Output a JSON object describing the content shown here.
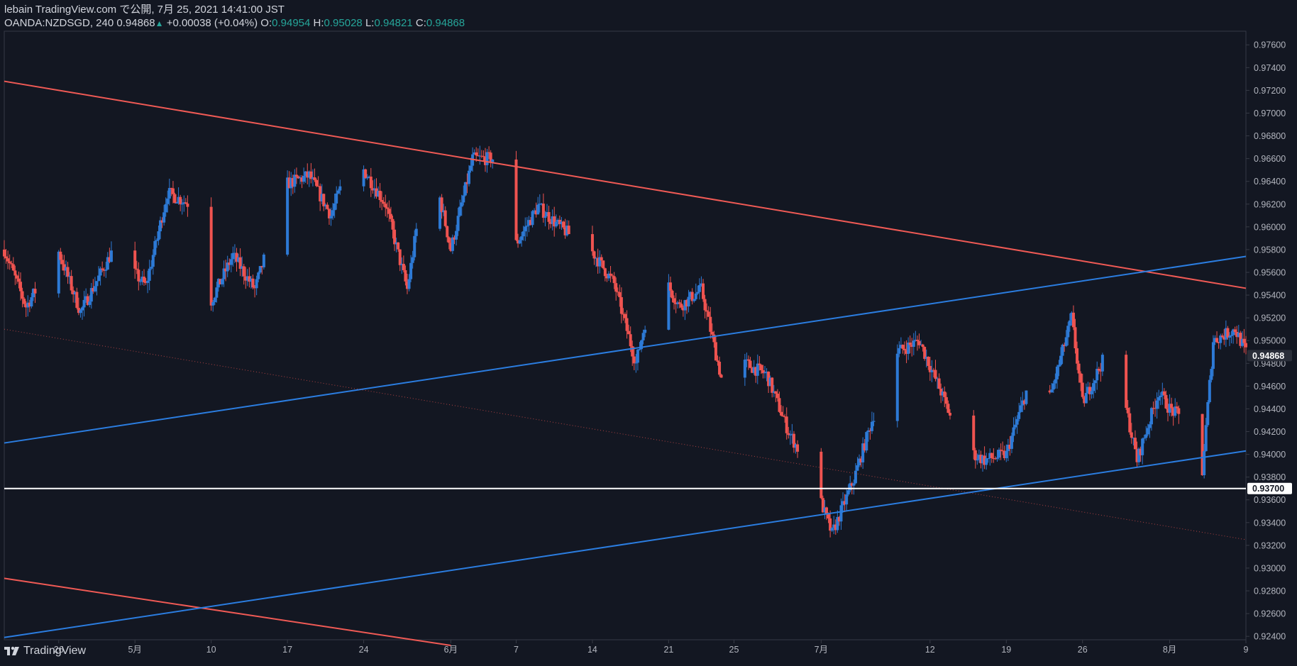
{
  "header": {
    "published": "lebain TradingView.com で公開, 7月 25, 2021 14:41:00 JST",
    "symbol": "OANDA:NZDSGD, 240",
    "last": "0.94868",
    "change": "+0.00038 (+0.04%)",
    "o_label": "O:",
    "o_value": "0.94954",
    "h_label": "H:",
    "h_value": "0.95028",
    "l_label": "L:",
    "l_value": "0.94821",
    "c_label": "C:",
    "c_value": "0.94868"
  },
  "footer": {
    "brand": "TradingView",
    "logo_icon": "tradingview-logo-icon"
  },
  "colors": {
    "background": "#131722",
    "bull": "#2d7ad6",
    "bear": "#ef5350",
    "resistance": "#f05a55",
    "support": "#2b7de0",
    "level": "#ffffff",
    "axis_text": "#b2b5be",
    "grid_border": "#363a45"
  },
  "chart_data": {
    "type": "candlestick",
    "symbol": "OANDA:NZDSGD",
    "interval": "240",
    "grid": false,
    "ylim": [
      0.9237,
      0.9772
    ],
    "y_ticks": [
      0.976,
      0.974,
      0.972,
      0.97,
      0.968,
      0.966,
      0.964,
      0.962,
      0.96,
      0.958,
      0.956,
      0.954,
      0.952,
      0.95,
      0.948,
      0.946,
      0.944,
      0.942,
      0.94,
      0.938,
      0.936,
      0.934,
      0.932,
      0.93,
      0.928,
      0.926,
      0.924
    ],
    "y_tick_labels": [
      "0.97600",
      "0.97400",
      "0.97200",
      "0.97000",
      "0.96800",
      "0.96600",
      "0.96400",
      "0.96200",
      "0.96000",
      "0.95800",
      "0.95600",
      "0.95400",
      "0.95200",
      "0.95000",
      "0.94800",
      "0.94600",
      "0.94400",
      "0.94200",
      "0.94000",
      "0.93800",
      "0.93600",
      "0.93400",
      "0.93200",
      "0.93000",
      "0.92800",
      "0.92600",
      "0.92400"
    ],
    "x_domain": [
      "2021-04-21",
      "2021-08-09"
    ],
    "x_ticks": [
      {
        "date": "2021-04-26",
        "label": "26"
      },
      {
        "date": "2021-05-03",
        "label": "5月"
      },
      {
        "date": "2021-05-10",
        "label": "10"
      },
      {
        "date": "2021-05-17",
        "label": "17"
      },
      {
        "date": "2021-05-24",
        "label": "24"
      },
      {
        "date": "2021-06-01",
        "label": "6月"
      },
      {
        "date": "2021-06-07",
        "label": "7"
      },
      {
        "date": "2021-06-14",
        "label": "14"
      },
      {
        "date": "2021-06-21",
        "label": "21"
      },
      {
        "date": "2021-06-27",
        "label": "25"
      },
      {
        "date": "2021-07-05",
        "label": "7月"
      },
      {
        "date": "2021-07-15",
        "label": "12"
      },
      {
        "date": "2021-07-22",
        "label": "19"
      },
      {
        "date": "2021-07-29",
        "label": "26"
      },
      {
        "date": "2021-08-06",
        "label": "8月"
      },
      {
        "date": "2021-08-13",
        "label": "9"
      }
    ],
    "price_labels": [
      {
        "value": 0.94868,
        "label": "0.94868",
        "style": "current"
      },
      {
        "value": 0.937,
        "label": "0.93700",
        "style": "level"
      }
    ],
    "lines": [
      {
        "name": "",
        "style": "solid",
        "color": "resistance",
        "points": [
          [
            "2021-04-21",
            0.9728
          ],
          [
            "2021-08-13",
            0.9546
          ]
        ]
      },
      {
        "name": "",
        "style": "solid",
        "color": "resistance",
        "points": [
          [
            "2021-04-21",
            0.9291
          ],
          [
            "2021-06-01",
            0.9232
          ]
        ]
      },
      {
        "name": "",
        "style": "solid",
        "color": "support",
        "points": [
          [
            "2021-04-21",
            0.941
          ],
          [
            "2021-08-13",
            0.9574
          ]
        ]
      },
      {
        "name": "",
        "style": "solid",
        "color": "support",
        "points": [
          [
            "2021-04-21",
            0.9239
          ],
          [
            "2021-08-13",
            0.9403
          ]
        ]
      },
      {
        "name": "",
        "style": "dotted",
        "color": "bear",
        "points": [
          [
            "2021-04-21",
            0.951
          ],
          [
            "2021-08-13",
            0.9325
          ]
        ]
      },
      {
        "name": "",
        "style": "solid",
        "color": "level",
        "points": [
          [
            "2021-04-21",
            0.937
          ],
          [
            "2021-08-13",
            0.937
          ]
        ]
      }
    ],
    "anchors": [
      [
        "2021-04-21",
        0.958
      ],
      [
        "2021-04-23",
        0.953
      ],
      [
        "2021-04-26",
        0.9578
      ],
      [
        "2021-04-28",
        0.9525
      ],
      [
        "2021-05-01",
        0.958
      ],
      [
        "2021-05-04",
        0.9548
      ],
      [
        "2021-05-06",
        0.963
      ],
      [
        "2021-05-08",
        0.962
      ],
      [
        "2021-05-10",
        0.9535
      ],
      [
        "2021-05-12",
        0.9575
      ],
      [
        "2021-05-14",
        0.9545
      ],
      [
        "2021-05-17",
        0.9638
      ],
      [
        "2021-05-19",
        0.9645
      ],
      [
        "2021-05-21",
        0.961
      ],
      [
        "2021-05-23",
        0.9665
      ],
      [
        "2021-05-26",
        0.962
      ],
      [
        "2021-05-28",
        0.9545
      ],
      [
        "2021-05-30",
        0.967
      ],
      [
        "2021-06-01",
        0.958
      ],
      [
        "2021-06-03",
        0.966
      ],
      [
        "2021-06-05",
        0.966
      ],
      [
        "2021-06-07",
        0.9585
      ],
      [
        "2021-06-09",
        0.9618
      ],
      [
        "2021-06-11",
        0.96
      ],
      [
        "2021-06-14",
        0.9578
      ],
      [
        "2021-06-16",
        0.955
      ],
      [
        "2021-06-18",
        0.948
      ],
      [
        "2021-06-20",
        0.9565
      ],
      [
        "2021-06-22",
        0.953
      ],
      [
        "2021-06-24",
        0.9545
      ],
      [
        "2021-06-26",
        0.946
      ],
      [
        "2021-06-28",
        0.948
      ],
      [
        "2021-06-30",
        0.947
      ],
      [
        "2021-07-02",
        0.942
      ],
      [
        "2021-07-04",
        0.9385
      ],
      [
        "2021-07-06",
        0.933
      ],
      [
        "2021-07-08",
        0.9378
      ],
      [
        "2021-07-10",
        0.944
      ],
      [
        "2021-07-12",
        0.949
      ],
      [
        "2021-07-14",
        0.95
      ],
      [
        "2021-07-16",
        0.9455
      ],
      [
        "2021-07-18",
        0.9405
      ],
      [
        "2021-07-20",
        0.9395
      ],
      [
        "2021-07-22",
        0.94
      ],
      [
        "2021-07-24",
        0.946
      ],
      [
        "2021-07-26",
        0.945
      ],
      [
        "2021-07-28",
        0.952
      ],
      [
        "2021-07-29",
        0.9445
      ],
      [
        "2021-07-31",
        0.9485
      ],
      [
        "2021-08-02",
        0.944
      ],
      [
        "2021-08-03",
        0.9395
      ],
      [
        "2021-08-05",
        0.9455
      ],
      [
        "2021-08-06",
        0.944
      ],
      [
        "2021-08-08",
        0.9425
      ],
      [
        "2021-08-09",
        0.9385
      ],
      [
        "2021-08-10",
        0.95
      ],
      [
        "2021-08-12",
        0.951
      ],
      [
        "2021-08-13",
        0.949
      ]
    ],
    "extent_note": ""
  }
}
